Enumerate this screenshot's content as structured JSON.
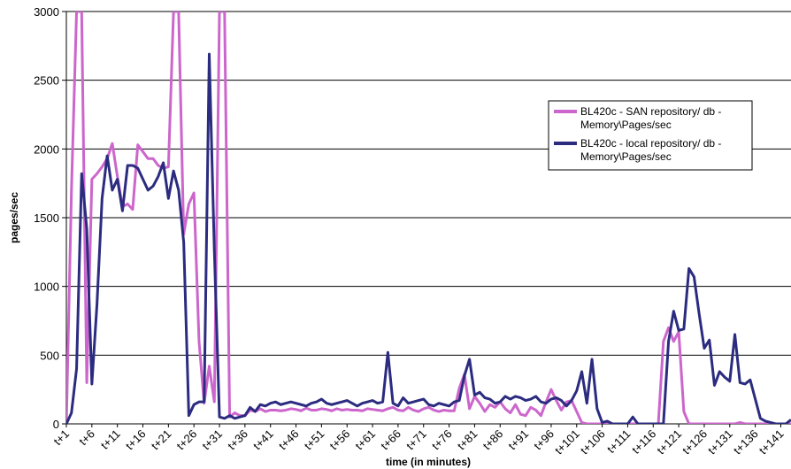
{
  "chart_data": {
    "type": "line",
    "title": "",
    "xlabel": "time (in minutes)",
    "ylabel": "pages/sec",
    "ylim": [
      0,
      3000
    ],
    "yticks": [
      0,
      500,
      1000,
      1500,
      2000,
      2500,
      3000
    ],
    "grid": true,
    "legend_position": "right",
    "x": [
      "t+1",
      "t+2",
      "t+3",
      "t+4",
      "t+5",
      "t+6",
      "t+7",
      "t+8",
      "t+9",
      "t+10",
      "t+11",
      "t+12",
      "t+13",
      "t+14",
      "t+15",
      "t+16",
      "t+17",
      "t+18",
      "t+19",
      "t+20",
      "t+21",
      "t+22",
      "t+23",
      "t+24",
      "t+25",
      "t+26",
      "t+27",
      "t+28",
      "t+29",
      "t+30",
      "t+31",
      "t+32",
      "t+33",
      "t+34",
      "t+35",
      "t+36",
      "t+37",
      "t+38",
      "t+39",
      "t+40",
      "t+41",
      "t+42",
      "t+43",
      "t+44",
      "t+45",
      "t+46",
      "t+47",
      "t+48",
      "t+49",
      "t+50",
      "t+51",
      "t+52",
      "t+53",
      "t+54",
      "t+55",
      "t+56",
      "t+57",
      "t+58",
      "t+59",
      "t+60",
      "t+61",
      "t+62",
      "t+63",
      "t+64",
      "t+65",
      "t+66",
      "t+67",
      "t+68",
      "t+69",
      "t+70",
      "t+71",
      "t+72",
      "t+73",
      "t+74",
      "t+75",
      "t+76",
      "t+77",
      "t+78",
      "t+79",
      "t+80",
      "t+81",
      "t+82",
      "t+83",
      "t+84",
      "t+85",
      "t+86",
      "t+87",
      "t+88",
      "t+89",
      "t+90",
      "t+91",
      "t+92",
      "t+93",
      "t+94",
      "t+95",
      "t+96",
      "t+97",
      "t+98",
      "t+99",
      "t+100",
      "t+101",
      "t+102",
      "t+103",
      "t+104",
      "t+105",
      "t+106",
      "t+107",
      "t+108",
      "t+109",
      "t+110",
      "t+111",
      "t+112",
      "t+113",
      "t+114",
      "t+115",
      "t+116",
      "t+117",
      "t+118",
      "t+119",
      "t+120",
      "t+121",
      "t+122",
      "t+123",
      "t+124",
      "t+125",
      "t+126",
      "t+127",
      "t+128",
      "t+129",
      "t+130",
      "t+131",
      "t+132",
      "t+133",
      "t+134",
      "t+135",
      "t+136",
      "t+137",
      "t+138",
      "t+139",
      "t+140",
      "t+141",
      "t+142",
      "t+143"
    ],
    "tick_labels": [
      "t+1",
      "t+6",
      "t+11",
      "t+16",
      "t+21",
      "t+26",
      "t+31",
      "t+36",
      "t+41",
      "t+46",
      "t+51",
      "t+56",
      "t+61",
      "t+66",
      "t+71",
      "t+76",
      "t+81",
      "t+86",
      "t+91",
      "t+96",
      "t+101",
      "t+106",
      "t+111",
      "t+116",
      "t+121",
      "t+126",
      "t+131",
      "t+136",
      "t+141"
    ],
    "series": [
      {
        "name": "BL420c - SAN repository/ db - Memory\\Pages/sec",
        "color": "#cc66cc",
        "values": [
          0,
          1700,
          3000,
          3000,
          300,
          1780,
          1820,
          1870,
          1930,
          2040,
          1800,
          1580,
          1600,
          1560,
          2030,
          1980,
          1930,
          1930,
          1880,
          1860,
          1870,
          3000,
          3000,
          1380,
          1600,
          1680,
          600,
          150,
          420,
          160,
          3000,
          3000,
          50,
          80,
          60,
          60,
          100,
          90,
          110,
          90,
          100,
          100,
          95,
          100,
          110,
          105,
          95,
          115,
          100,
          100,
          110,
          105,
          95,
          110,
          100,
          105,
          100,
          100,
          95,
          110,
          105,
          100,
          95,
          110,
          120,
          100,
          95,
          120,
          100,
          90,
          110,
          120,
          100,
          90,
          100,
          95,
          95,
          260,
          360,
          110,
          200,
          150,
          90,
          140,
          120,
          160,
          110,
          80,
          140,
          70,
          60,
          120,
          100,
          60,
          160,
          250,
          170,
          100,
          160,
          170,
          90,
          10,
          0,
          0,
          0,
          0,
          0,
          0,
          0,
          0,
          0,
          0,
          0,
          0,
          0,
          0,
          0,
          600,
          700,
          600,
          670,
          90,
          0,
          0,
          0,
          0,
          0,
          0,
          0,
          0,
          0,
          0,
          10,
          0,
          0,
          0,
          0,
          0,
          0,
          0,
          0,
          0,
          0
        ]
      },
      {
        "name": "BL420c - local repository/ db - Memory\\Pages/sec",
        "color": "#2b2b80",
        "values": [
          0,
          80,
          400,
          1820,
          1420,
          290,
          870,
          1640,
          1950,
          1700,
          1780,
          1550,
          1880,
          1880,
          1860,
          1780,
          1700,
          1730,
          1800,
          1900,
          1640,
          1840,
          1700,
          1320,
          60,
          140,
          160,
          160,
          2690,
          1260,
          50,
          40,
          60,
          40,
          50,
          60,
          120,
          90,
          140,
          130,
          150,
          160,
          140,
          150,
          160,
          150,
          140,
          130,
          150,
          160,
          180,
          150,
          140,
          150,
          160,
          170,
          150,
          130,
          150,
          160,
          170,
          150,
          160,
          520,
          150,
          130,
          190,
          150,
          160,
          170,
          180,
          140,
          130,
          150,
          140,
          130,
          160,
          170,
          350,
          470,
          210,
          230,
          190,
          180,
          150,
          160,
          200,
          180,
          200,
          190,
          170,
          180,
          200,
          160,
          150,
          180,
          190,
          170,
          130,
          170,
          240,
          380,
          150,
          470,
          110,
          10,
          20,
          0,
          0,
          0,
          0,
          50,
          0,
          0,
          0,
          0,
          0,
          0,
          600,
          820,
          680,
          690,
          1130,
          1070,
          800,
          550,
          610,
          280,
          380,
          340,
          310,
          650,
          300,
          290,
          320,
          180,
          40,
          20,
          10,
          0,
          0,
          0,
          30
        ]
      }
    ]
  }
}
